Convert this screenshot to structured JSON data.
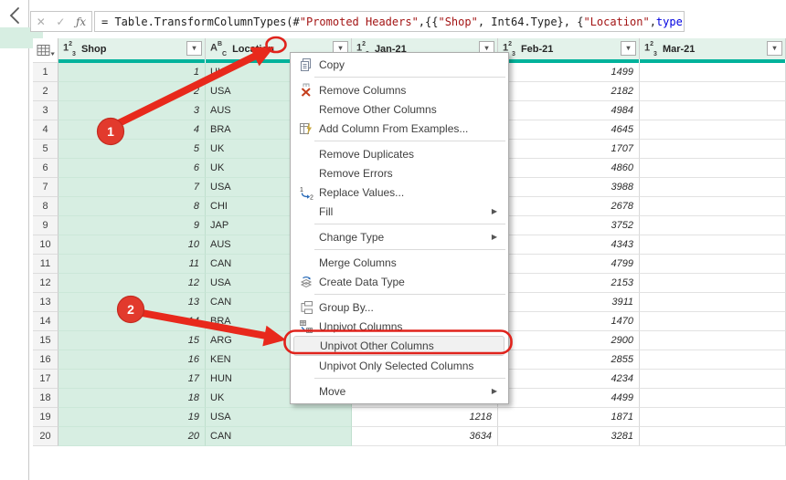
{
  "left_panel": {
    "collapse_icon": "chevron-left"
  },
  "formula_bar": {
    "cancel_glyph": "✕",
    "check_glyph": "✓",
    "fx_glyph": "ƒx",
    "tokens": [
      {
        "kind": "plain",
        "text": "= Table.TransformColumnTypes(#"
      },
      {
        "kind": "string",
        "text": "\"Promoted Headers\""
      },
      {
        "kind": "plain",
        "text": ",{{"
      },
      {
        "kind": "string",
        "text": "\"Shop\""
      },
      {
        "kind": "plain",
        "text": ", Int64.Type}, {"
      },
      {
        "kind": "string",
        "text": "\"Location\""
      },
      {
        "kind": "plain",
        "text": ", "
      },
      {
        "kind": "keyword",
        "text": "type"
      }
    ]
  },
  "grid": {
    "columns": [
      {
        "key": "shop",
        "label": "Shop",
        "type_base": "1",
        "type_sup": "2",
        "type_sub": "3",
        "selected": true,
        "kind": "num"
      },
      {
        "key": "location",
        "label": "Location",
        "type_base": "A",
        "type_sup": "B",
        "type_sub": "C",
        "selected": true,
        "kind": "txt"
      },
      {
        "key": "jan",
        "label": "Jan-21",
        "type_base": "1",
        "type_sup": "2",
        "type_sub": "3",
        "selected": false,
        "kind": "num"
      },
      {
        "key": "feb",
        "label": "Feb-21",
        "type_base": "1",
        "type_sup": "2",
        "type_sub": "3",
        "selected": false,
        "kind": "num"
      },
      {
        "key": "mar",
        "label": "Mar-21",
        "type_base": "1",
        "type_sup": "2",
        "type_sub": "3",
        "selected": false,
        "kind": "num"
      }
    ],
    "rows": [
      {
        "n": "1",
        "shop": "1",
        "location": "UK",
        "jan": "",
        "feb": "1499",
        "mar": ""
      },
      {
        "n": "2",
        "shop": "2",
        "location": "USA",
        "jan": "",
        "feb": "2182",
        "mar": ""
      },
      {
        "n": "3",
        "shop": "3",
        "location": "AUS",
        "jan": "",
        "feb": "4984",
        "mar": ""
      },
      {
        "n": "4",
        "shop": "4",
        "location": "BRA",
        "jan": "",
        "feb": "4645",
        "mar": ""
      },
      {
        "n": "5",
        "shop": "5",
        "location": "UK",
        "jan": "",
        "feb": "1707",
        "mar": ""
      },
      {
        "n": "6",
        "shop": "6",
        "location": "UK",
        "jan": "",
        "feb": "4860",
        "mar": ""
      },
      {
        "n": "7",
        "shop": "7",
        "location": "USA",
        "jan": "",
        "feb": "3988",
        "mar": ""
      },
      {
        "n": "8",
        "shop": "8",
        "location": "CHI",
        "jan": "",
        "feb": "2678",
        "mar": ""
      },
      {
        "n": "9",
        "shop": "9",
        "location": "JAP",
        "jan": "",
        "feb": "3752",
        "mar": ""
      },
      {
        "n": "10",
        "shop": "10",
        "location": "AUS",
        "jan": "",
        "feb": "4343",
        "mar": ""
      },
      {
        "n": "11",
        "shop": "11",
        "location": "CAN",
        "jan": "",
        "feb": "4799",
        "mar": ""
      },
      {
        "n": "12",
        "shop": "12",
        "location": "USA",
        "jan": "",
        "feb": "2153",
        "mar": ""
      },
      {
        "n": "13",
        "shop": "13",
        "location": "CAN",
        "jan": "",
        "feb": "3911",
        "mar": ""
      },
      {
        "n": "14",
        "shop": "14",
        "location": "BRA",
        "jan": "",
        "feb": "1470",
        "mar": ""
      },
      {
        "n": "15",
        "shop": "15",
        "location": "ARG",
        "jan": "",
        "feb": "2900",
        "mar": ""
      },
      {
        "n": "16",
        "shop": "16",
        "location": "KEN",
        "jan": "",
        "feb": "2855",
        "mar": ""
      },
      {
        "n": "17",
        "shop": "17",
        "location": "HUN",
        "jan": "",
        "feb": "4234",
        "mar": ""
      },
      {
        "n": "18",
        "shop": "18",
        "location": "UK",
        "jan": "",
        "feb": "4499",
        "mar": ""
      },
      {
        "n": "19",
        "shop": "19",
        "location": "USA",
        "jan": "1218",
        "feb": "1871",
        "mar": ""
      },
      {
        "n": "20",
        "shop": "20",
        "location": "CAN",
        "jan": "3634",
        "feb": "3281",
        "mar": ""
      }
    ]
  },
  "menu": {
    "submenu_arrow_glyph": "▶",
    "filter_arrow_glyph": "▾",
    "items": [
      {
        "label": "Copy",
        "icon": "copy"
      },
      {
        "sep": true
      },
      {
        "label": "Remove Columns",
        "icon": "remove-columns"
      },
      {
        "label": "Remove Other Columns"
      },
      {
        "label": "Add Column From Examples...",
        "icon": "add-column-from-examples"
      },
      {
        "sep": true
      },
      {
        "label": "Remove Duplicates"
      },
      {
        "label": "Remove Errors"
      },
      {
        "label": "Replace Values...",
        "icon": "replace-values"
      },
      {
        "label": "Fill",
        "submenu": true
      },
      {
        "sep": true
      },
      {
        "label": "Change Type",
        "submenu": true
      },
      {
        "sep": true
      },
      {
        "label": "Merge Columns"
      },
      {
        "label": "Create Data Type",
        "icon": "create-data-type"
      },
      {
        "sep": true
      },
      {
        "label": "Group By...",
        "icon": "group-by"
      },
      {
        "label": "Unpivot Columns",
        "icon": "unpivot-columns"
      },
      {
        "label": "Unpivot Other Columns",
        "highlighted": true
      },
      {
        "label": "Unpivot Only Selected Columns"
      },
      {
        "sep": true
      },
      {
        "label": "Move",
        "submenu": true
      }
    ]
  },
  "annotations": {
    "step1": {
      "label": "1"
    },
    "step2": {
      "label": "2"
    },
    "accent_red": "#E0231C"
  }
}
